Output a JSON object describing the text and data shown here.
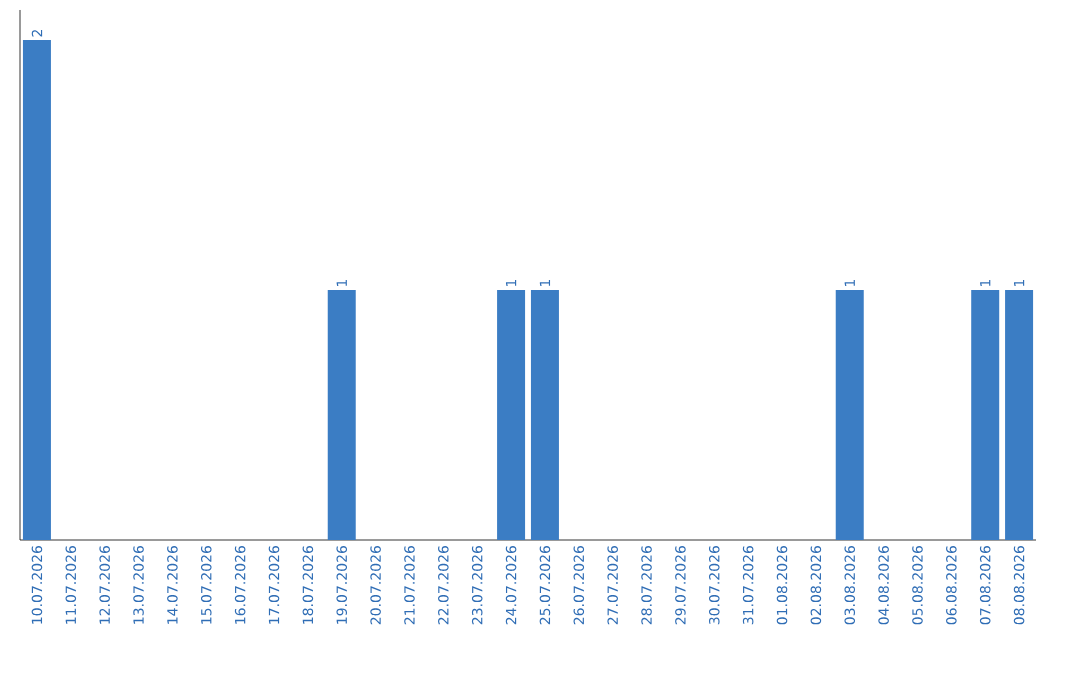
{
  "chart_data": {
    "type": "bar",
    "categories": [
      "10.07.2026",
      "11.07.2026",
      "12.07.2026",
      "13.07.2026",
      "14.07.2026",
      "15.07.2026",
      "16.07.2026",
      "17.07.2026",
      "18.07.2026",
      "19.07.2026",
      "20.07.2026",
      "21.07.2026",
      "22.07.2026",
      "23.07.2026",
      "24.07.2026",
      "25.07.2026",
      "26.07.2026",
      "27.07.2026",
      "28.07.2026",
      "29.07.2026",
      "30.07.2026",
      "31.07.2026",
      "01.08.2026",
      "02.08.2026",
      "03.08.2026",
      "04.08.2026",
      "05.08.2026",
      "06.08.2026",
      "07.08.2026",
      "08.08.2026"
    ],
    "values": [
      2,
      0,
      0,
      0,
      0,
      0,
      0,
      0,
      0,
      1,
      0,
      0,
      0,
      0,
      1,
      1,
      0,
      0,
      0,
      0,
      0,
      0,
      0,
      0,
      1,
      0,
      0,
      0,
      1,
      1
    ],
    "value_labels": [
      "2",
      null,
      null,
      null,
      null,
      null,
      null,
      null,
      null,
      "1",
      null,
      null,
      null,
      null,
      "1",
      "1",
      null,
      null,
      null,
      null,
      null,
      null,
      null,
      null,
      "1",
      null,
      null,
      null,
      "1",
      "1"
    ],
    "color": "#3b7dc4"
  }
}
